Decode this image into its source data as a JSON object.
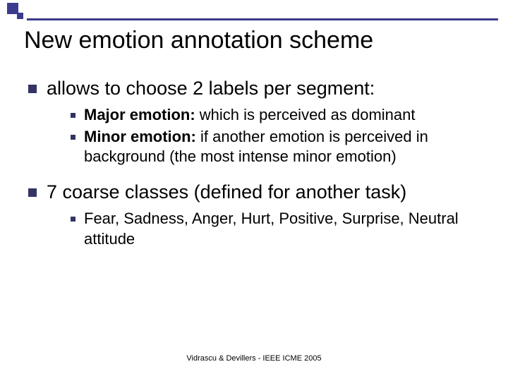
{
  "colors": {
    "accent": "#3b3b8f",
    "bullet_l1": "#333366",
    "bullet_l2": "#333366",
    "text": "#000000",
    "background": "#ffffff"
  },
  "title": "New emotion annotation scheme",
  "items": [
    {
      "text": "allows to choose 2 labels per segment:",
      "sub": [
        {
          "lead": "Major emotion:",
          "rest": " which is perceived as dominant"
        },
        {
          "lead": "Minor emotion:",
          "rest": "  if another emotion is perceived in background (the most intense minor emotion)"
        }
      ]
    },
    {
      "text": "7 coarse classes (defined for another task)",
      "sub": [
        {
          "lead": "",
          "rest": "Fear, Sadness, Anger, Hurt, Positive, Surprise, Neutral attitude"
        }
      ]
    }
  ],
  "footer": "Vidrascu &  Devillers - IEEE ICME 2005"
}
